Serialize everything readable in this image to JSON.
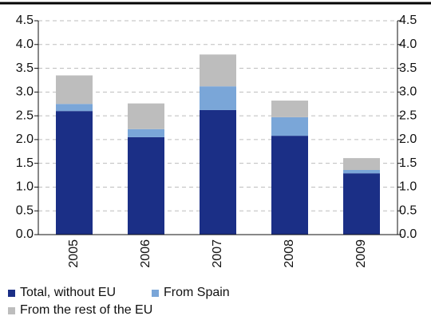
{
  "chart_data": {
    "type": "stacked-bar",
    "categories": [
      "2005",
      "2006",
      "2007",
      "2008",
      "2009"
    ],
    "series": [
      {
        "name": "Total, without EU",
        "color": "#1b2f86",
        "values": [
          2.6,
          2.05,
          2.62,
          2.08,
          1.29
        ]
      },
      {
        "name": "From Spain",
        "color": "#7aa6d8",
        "values": [
          0.15,
          0.17,
          0.5,
          0.39,
          0.07
        ]
      },
      {
        "name": "From the rest of the EU",
        "color": "#bdbdbd",
        "values": [
          0.6,
          0.54,
          0.67,
          0.35,
          0.25
        ]
      }
    ],
    "ylim": [
      0,
      4.5
    ],
    "yticks": [
      {
        "value": 0,
        "label": "0.0"
      },
      0.5,
      {
        "value": 1,
        "label": "1.0"
      },
      1.5,
      {
        "value": 2,
        "label": "2.0"
      },
      2.5,
      {
        "value": 3,
        "label": "3.0"
      },
      3.5,
      {
        "value": 4,
        "label": "4.0"
      },
      4.5
    ],
    "y2lim": [
      0,
      4.5
    ],
    "y2ticks": [
      {
        "value": 0,
        "label": "0.0"
      },
      0.5,
      {
        "value": 1,
        "label": "1.0"
      },
      1.5,
      {
        "value": 2,
        "label": "2.0"
      },
      2.5,
      {
        "value": 3,
        "label": "3.0"
      },
      3.5,
      {
        "value": 4,
        "label": "4.0"
      },
      4.5
    ],
    "grid": true
  }
}
